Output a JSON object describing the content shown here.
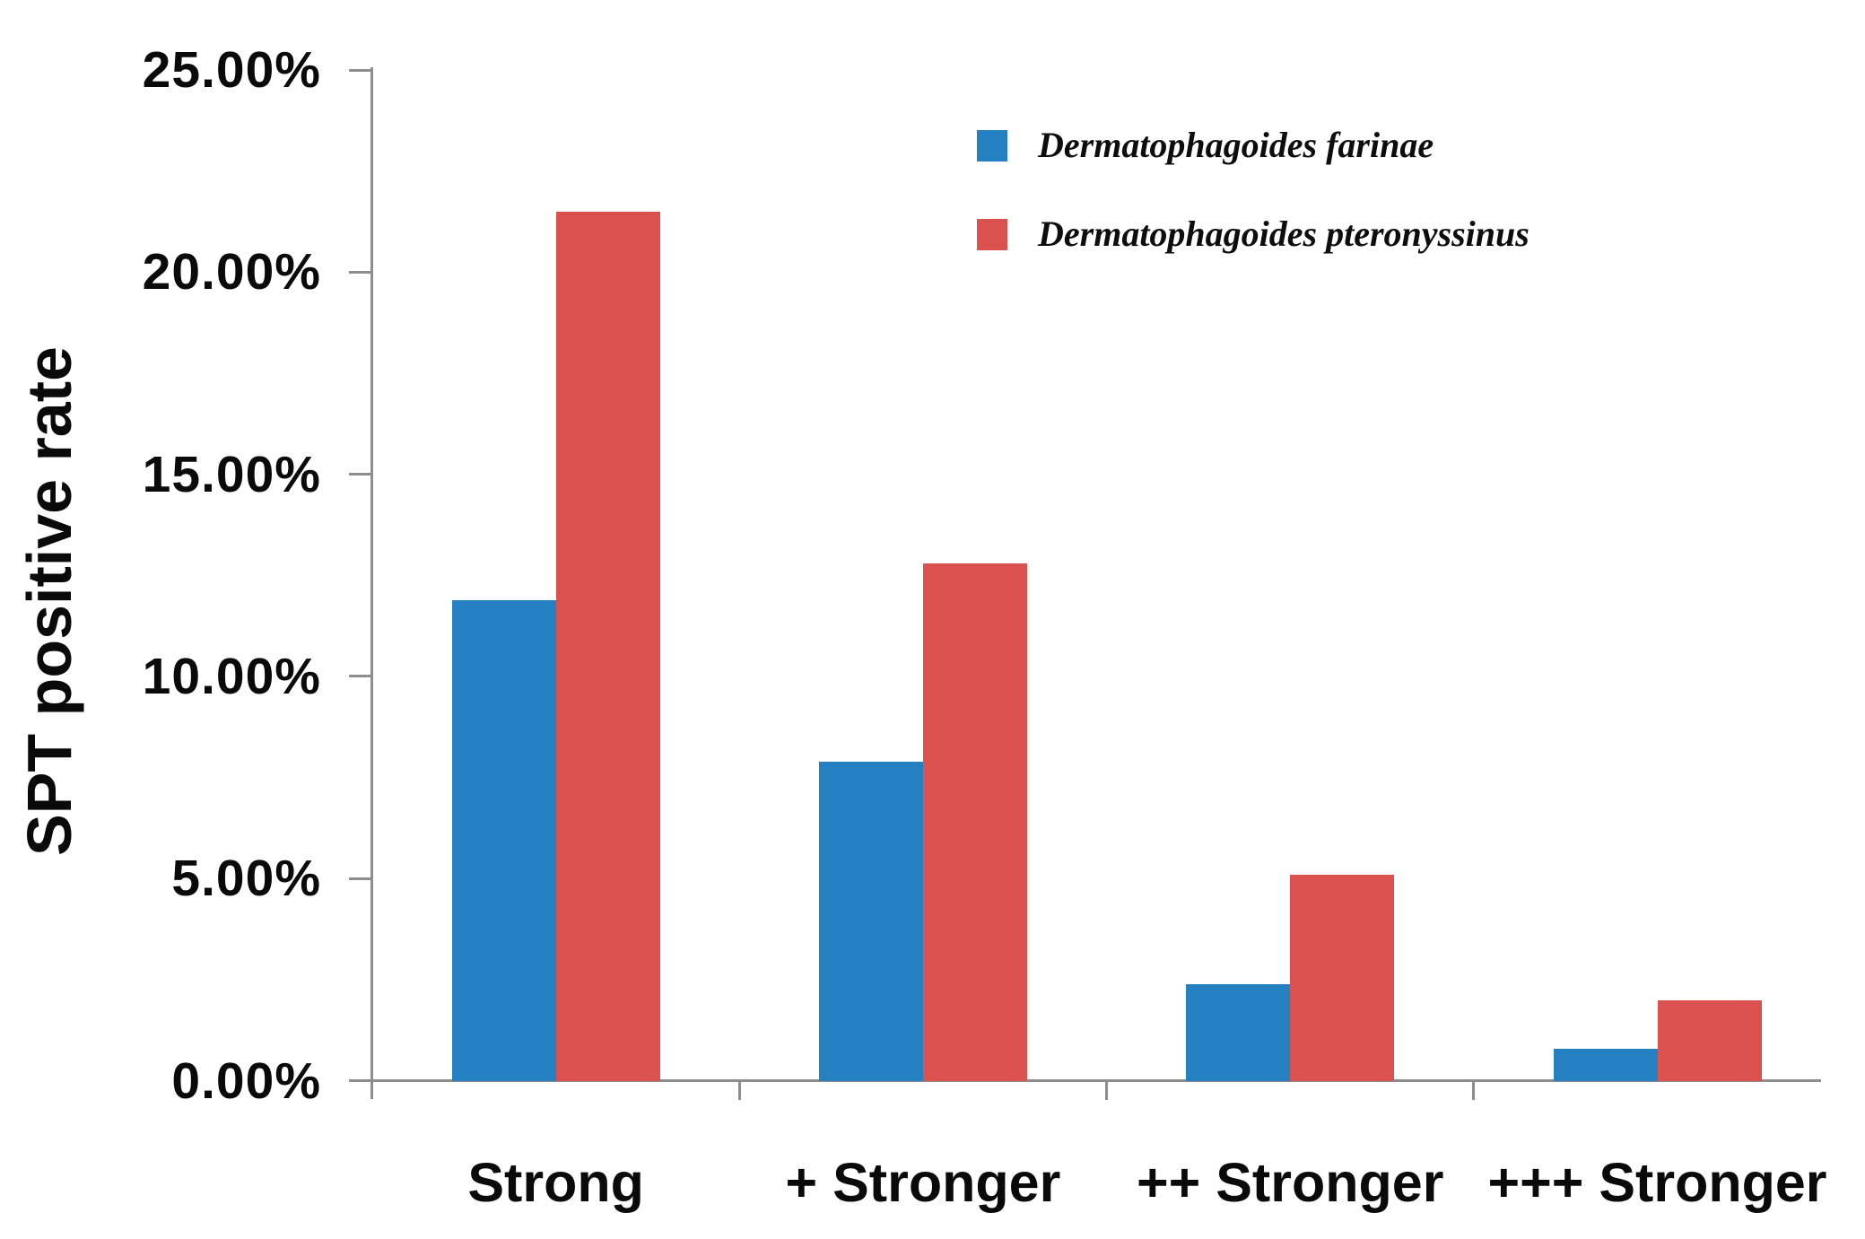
{
  "chart_data": {
    "type": "bar",
    "title": "",
    "ylabel": "SPT positive rate",
    "xlabel": "",
    "unit": "%",
    "categories": [
      "Strong",
      "+ Stronger",
      "++ Stronger",
      "+++ Stronger"
    ],
    "series": [
      {
        "name": "Dermatophagoides farinae",
        "color": "#2580C1",
        "values": [
          11.9,
          7.9,
          2.4,
          0.8
        ]
      },
      {
        "name": "Dermatophagoides pteronyssinus",
        "color": "#DA514E",
        "values": [
          21.5,
          12.8,
          5.1,
          2.0
        ]
      }
    ],
    "ylim": [
      0,
      25
    ],
    "yticks": {
      "values": [
        0,
        5,
        10,
        15,
        20,
        25
      ],
      "labels": [
        "0.00%",
        "5.00%",
        "10.00%",
        "15.00%",
        "20.00%",
        "25.00%"
      ]
    },
    "grid": false,
    "legend_position": "top-right"
  }
}
